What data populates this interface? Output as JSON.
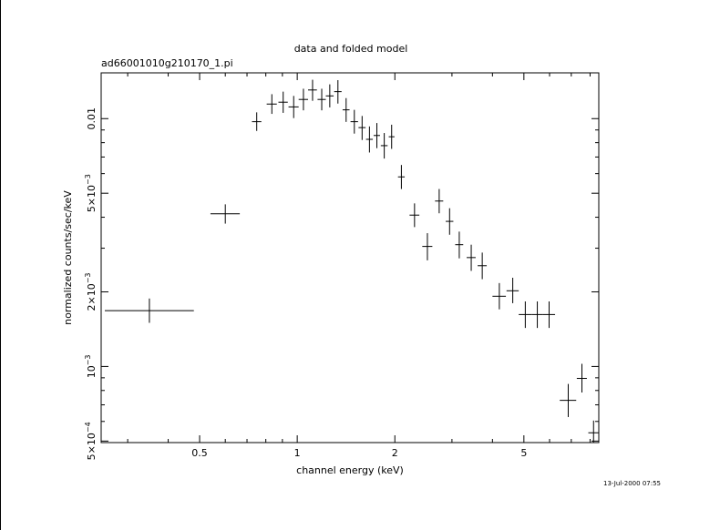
{
  "chart_data": {
    "type": "scatter",
    "title": "data and folded model",
    "subtitle": "ad66001010g210170_1.pi",
    "xlabel": "channel energy (keV)",
    "ylabel": "normalized counts/sec/keV",
    "x_scale": "log",
    "y_scale": "log",
    "xlim": [
      0.2485,
      8.51
    ],
    "ylim": [
      0.000493,
      0.0153
    ],
    "timestamp": "13-Jul-2000 07:55",
    "x_tick_labels": [
      {
        "value": 0.5,
        "label": "0.5"
      },
      {
        "value": 1,
        "label": "1"
      },
      {
        "value": 2,
        "label": "2"
      },
      {
        "value": 5,
        "label": "5"
      }
    ],
    "y_tick_labels": [
      {
        "value": 0.0005,
        "mantissa": "5×10",
        "exp": "−4"
      },
      {
        "value": 0.001,
        "mantissa": "10",
        "exp": "−3"
      },
      {
        "value": 0.002,
        "mantissa": "2×10",
        "exp": "−3"
      },
      {
        "value": 0.005,
        "mantissa": "5×10",
        "exp": "−3"
      },
      {
        "value": 0.01,
        "mantissa": "0.01",
        "exp": ""
      }
    ],
    "series": [
      {
        "points": [
          {
            "x": 0.35,
            "xlo": 0.255,
            "xhi": 0.48,
            "y": 0.00168,
            "ylo": 0.0015,
            "yhi": 0.00188
          },
          {
            "x": 0.6,
            "xlo": 0.54,
            "xhi": 0.665,
            "y": 0.00413,
            "ylo": 0.00377,
            "yhi": 0.00451
          },
          {
            "x": 0.75,
            "xlo": 0.725,
            "xhi": 0.775,
            "y": 0.00972,
            "ylo": 0.00892,
            "yhi": 0.0106
          },
          {
            "x": 0.835,
            "xlo": 0.805,
            "xhi": 0.865,
            "y": 0.01145,
            "ylo": 0.01045,
            "yhi": 0.01255
          },
          {
            "x": 0.905,
            "xlo": 0.875,
            "xhi": 0.935,
            "y": 0.01165,
            "ylo": 0.01055,
            "yhi": 0.01285
          },
          {
            "x": 0.975,
            "xlo": 0.94,
            "xhi": 1.01,
            "y": 0.01115,
            "ylo": 0.01005,
            "yhi": 0.01235
          },
          {
            "x": 1.045,
            "xlo": 1.01,
            "xhi": 1.08,
            "y": 0.01195,
            "ylo": 0.0108,
            "yhi": 0.0132
          },
          {
            "x": 1.115,
            "xlo": 1.08,
            "xhi": 1.15,
            "y": 0.01305,
            "ylo": 0.0118,
            "yhi": 0.01435
          },
          {
            "x": 1.19,
            "xlo": 1.155,
            "xhi": 1.225,
            "y": 0.01195,
            "ylo": 0.0108,
            "yhi": 0.0132
          },
          {
            "x": 1.26,
            "xlo": 1.225,
            "xhi": 1.295,
            "y": 0.01235,
            "ylo": 0.0111,
            "yhi": 0.01375
          },
          {
            "x": 1.335,
            "xlo": 1.3,
            "xhi": 1.37,
            "y": 0.01285,
            "ylo": 0.0115,
            "yhi": 0.0143
          },
          {
            "x": 1.415,
            "xlo": 1.38,
            "xhi": 1.45,
            "y": 0.01085,
            "ylo": 0.0097,
            "yhi": 0.0121
          },
          {
            "x": 1.5,
            "xlo": 1.46,
            "xhi": 1.54,
            "y": 0.00972,
            "ylo": 0.0087,
            "yhi": 0.01085
          },
          {
            "x": 1.585,
            "xlo": 1.545,
            "xhi": 1.625,
            "y": 0.0092,
            "ylo": 0.0082,
            "yhi": 0.01025
          },
          {
            "x": 1.67,
            "xlo": 1.63,
            "xhi": 1.71,
            "y": 0.00825,
            "ylo": 0.0073,
            "yhi": 0.0093
          },
          {
            "x": 1.76,
            "xlo": 1.72,
            "xhi": 1.8,
            "y": 0.00855,
            "ylo": 0.0076,
            "yhi": 0.0096
          },
          {
            "x": 1.855,
            "xlo": 1.81,
            "xhi": 1.9,
            "y": 0.00778,
            "ylo": 0.0069,
            "yhi": 0.00875
          },
          {
            "x": 1.955,
            "xlo": 1.915,
            "xhi": 1.995,
            "y": 0.00845,
            "ylo": 0.00755,
            "yhi": 0.00945
          },
          {
            "x": 2.095,
            "xlo": 2.045,
            "xhi": 2.145,
            "y": 0.00582,
            "ylo": 0.0052,
            "yhi": 0.0065
          },
          {
            "x": 2.3,
            "xlo": 2.22,
            "xhi": 2.38,
            "y": 0.00408,
            "ylo": 0.00365,
            "yhi": 0.00455
          },
          {
            "x": 2.52,
            "xlo": 2.43,
            "xhi": 2.61,
            "y": 0.00305,
            "ylo": 0.00268,
            "yhi": 0.00345
          },
          {
            "x": 2.74,
            "xlo": 2.66,
            "xhi": 2.82,
            "y": 0.00465,
            "ylo": 0.00415,
            "yhi": 0.0052
          },
          {
            "x": 2.95,
            "xlo": 2.87,
            "xhi": 3.03,
            "y": 0.00385,
            "ylo": 0.0034,
            "yhi": 0.00435
          },
          {
            "x": 3.16,
            "xlo": 3.07,
            "xhi": 3.25,
            "y": 0.0031,
            "ylo": 0.00273,
            "yhi": 0.0035
          },
          {
            "x": 3.44,
            "xlo": 3.33,
            "xhi": 3.55,
            "y": 0.00275,
            "ylo": 0.00243,
            "yhi": 0.0031
          },
          {
            "x": 3.72,
            "xlo": 3.6,
            "xhi": 3.84,
            "y": 0.00255,
            "ylo": 0.00225,
            "yhi": 0.00288
          },
          {
            "x": 4.2,
            "xlo": 4.0,
            "xhi": 4.4,
            "y": 0.00192,
            "ylo": 0.0017,
            "yhi": 0.00217
          },
          {
            "x": 4.62,
            "xlo": 4.42,
            "xhi": 4.82,
            "y": 0.00202,
            "ylo": 0.0018,
            "yhi": 0.00228
          },
          {
            "x": 5.05,
            "xlo": 4.82,
            "xhi": 5.28,
            "y": 0.00162,
            "ylo": 0.00143,
            "yhi": 0.00183
          },
          {
            "x": 5.5,
            "xlo": 5.28,
            "xhi": 5.72,
            "y": 0.00162,
            "ylo": 0.00143,
            "yhi": 0.00183
          },
          {
            "x": 5.98,
            "xlo": 5.72,
            "xhi": 6.24,
            "y": 0.00162,
            "ylo": 0.00143,
            "yhi": 0.00183
          },
          {
            "x": 6.85,
            "xlo": 6.45,
            "xhi": 7.25,
            "y": 0.00073,
            "ylo": 0.000625,
            "yhi": 0.00085
          },
          {
            "x": 7.55,
            "xlo": 7.28,
            "xhi": 7.82,
            "y": 0.000895,
            "ylo": 0.000785,
            "yhi": 0.001025
          },
          {
            "x": 8.2,
            "xlo": 7.9,
            "xhi": 8.51,
            "y": 0.00054,
            "ylo": 0.000493,
            "yhi": 0.000605
          }
        ]
      }
    ]
  }
}
